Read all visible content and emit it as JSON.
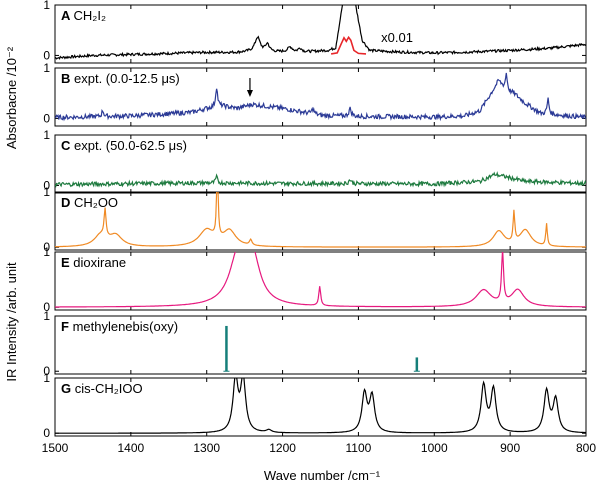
{
  "chart_data": {
    "type": "line",
    "x_axis": {
      "label": "Wave number /cm⁻¹",
      "range": [
        1500,
        800
      ],
      "reversed": true,
      "ticks": [
        1500,
        1400,
        1300,
        1200,
        1100,
        1000,
        900,
        800
      ]
    },
    "y_axis_labels": [
      {
        "text": "Absorbacne /10⁻²",
        "panels": [
          "A",
          "B",
          "C"
        ]
      },
      {
        "text": "IR Intensity /arb. unit",
        "panels": [
          "D",
          "E",
          "F",
          "G"
        ]
      }
    ],
    "grid": false,
    "panels": [
      {
        "id": "A",
        "letter": "A",
        "label": "CH₂I₂",
        "color": "#000000",
        "ylim": [
          -0.15,
          1.0
        ],
        "yticks": [
          0,
          1
        ],
        "kind": "noisy",
        "baseline": [
          [
            1500,
            -0.05
          ],
          [
            1450,
            0.0
          ],
          [
            1400,
            0.02
          ],
          [
            1350,
            0.04
          ],
          [
            1300,
            0.06
          ],
          [
            1260,
            0.06
          ],
          [
            1240,
            0.08
          ],
          [
            1180,
            0.06
          ],
          [
            1140,
            0.1
          ],
          [
            1130,
            0.15
          ],
          [
            1120,
            1.1
          ],
          [
            1105,
            1.1
          ],
          [
            1095,
            0.3
          ],
          [
            1085,
            0.1
          ],
          [
            1050,
            0.07
          ],
          [
            1000,
            0.05
          ],
          [
            950,
            0.07
          ],
          [
            900,
            0.1
          ],
          [
            850,
            0.14
          ],
          [
            800,
            0.22
          ]
        ],
        "peaks": [
          [
            1233,
            0.28,
            4
          ],
          [
            1220,
            0.15,
            3
          ],
          [
            1190,
            0.1,
            4
          ],
          [
            1177,
            0.08,
            3
          ]
        ],
        "noise": 0.025,
        "inset": {
          "label": "x0.01",
          "color": "#e8262a",
          "points": [
            [
              1136,
              0.03
            ],
            [
              1128,
              0.05
            ],
            [
              1123,
              0.22
            ],
            [
              1119,
              0.35
            ],
            [
              1116,
              0.28
            ],
            [
              1113,
              0.36
            ],
            [
              1110,
              0.3
            ],
            [
              1106,
              0.1
            ],
            [
              1100,
              0.04
            ],
            [
              1090,
              0.03
            ]
          ]
        }
      },
      {
        "id": "B",
        "letter": "B",
        "label": "expt. (0.0-12.5 μs)",
        "color": "#2b3a96",
        "ylim": [
          -0.15,
          1.0
        ],
        "yticks": [
          0,
          1
        ],
        "kind": "noisy",
        "baseline": [
          [
            1500,
            0.02
          ],
          [
            1400,
            0.05
          ],
          [
            1320,
            0.12
          ],
          [
            1300,
            0.2
          ],
          [
            1280,
            0.25
          ],
          [
            1260,
            0.2
          ],
          [
            1240,
            0.28
          ],
          [
            1200,
            0.2
          ],
          [
            1150,
            0.06
          ],
          [
            1100,
            0.04
          ],
          [
            1000,
            0.03
          ],
          [
            960,
            0.05
          ],
          [
            940,
            0.15
          ],
          [
            925,
            0.5
          ],
          [
            915,
            0.75
          ],
          [
            905,
            0.55
          ],
          [
            895,
            0.5
          ],
          [
            880,
            0.3
          ],
          [
            860,
            0.1
          ],
          [
            800,
            0.02
          ]
        ],
        "peaks": [
          [
            1287,
            0.4,
            1.5
          ],
          [
            1111,
            0.15,
            2
          ],
          [
            905,
            0.35,
            1.5
          ],
          [
            850,
            0.3,
            1.5
          ],
          [
            1437,
            0.12,
            1.5
          ],
          [
            1160,
            0.1,
            2
          ]
        ],
        "noise": 0.045,
        "arrow_at": 1243
      },
      {
        "id": "C",
        "letter": "C",
        "label": "expt. (50.0-62.5 μs)",
        "color": "#1d7a3e",
        "ylim": [
          -0.15,
          1.0
        ],
        "yticks": [
          0,
          1
        ],
        "kind": "noisy",
        "baseline": [
          [
            1500,
            0.02
          ],
          [
            1300,
            0.05
          ],
          [
            1200,
            0.04
          ],
          [
            1000,
            0.03
          ],
          [
            940,
            0.08
          ],
          [
            920,
            0.22
          ],
          [
            900,
            0.15
          ],
          [
            880,
            0.08
          ],
          [
            800,
            0.04
          ]
        ],
        "peaks": [
          [
            1287,
            0.12,
            1.5
          ],
          [
            1111,
            0.08,
            2
          ]
        ],
        "noise": 0.04
      },
      {
        "id": "D",
        "letter": "D",
        "label": "CH₂OO",
        "color": "#f08a24",
        "ylim": [
          -0.05,
          1.0
        ],
        "yticks": [
          0,
          1
        ],
        "kind": "sim",
        "peaks": [
          [
            1440,
            0.2,
            10
          ],
          [
            1434,
            0.5,
            1.5
          ],
          [
            1420,
            0.2,
            10
          ],
          [
            1300,
            0.3,
            12
          ],
          [
            1286,
            1.3,
            1.2
          ],
          [
            1270,
            0.28,
            10
          ],
          [
            1242,
            0.1,
            2
          ],
          [
            915,
            0.28,
            9
          ],
          [
            895,
            0.55,
            1.3
          ],
          [
            880,
            0.3,
            9
          ],
          [
            852,
            0.4,
            1.2
          ]
        ]
      },
      {
        "id": "E",
        "letter": "E",
        "label": "dioxirane",
        "color": "#e6197f",
        "ylim": [
          -0.05,
          1.0
        ],
        "yticks": [
          0,
          1
        ],
        "kind": "sim",
        "peaks": [
          [
            1258,
            0.9,
            14
          ],
          [
            1240,
            0.8,
            12
          ],
          [
            1250,
            0.3,
            1.5
          ],
          [
            1151,
            0.35,
            1.5
          ],
          [
            935,
            0.3,
            12
          ],
          [
            910,
            0.95,
            1.5
          ],
          [
            890,
            0.3,
            10
          ]
        ]
      },
      {
        "id": "F",
        "letter": "F",
        "label": "methylenebis(oxy)",
        "color": "#167f7a",
        "ylim": [
          -0.05,
          1.0
        ],
        "yticks": [
          0,
          1
        ],
        "kind": "sticks",
        "sticks": [
          [
            1274,
            0.82
          ],
          [
            1023,
            0.25
          ]
        ]
      },
      {
        "id": "G",
        "letter": "G",
        "label": "cis-CH₂IOO",
        "color": "#000000",
        "ylim": [
          -0.05,
          1.0
        ],
        "yticks": [
          0,
          1
        ],
        "kind": "sim",
        "peaks": [
          [
            1262,
            0.95,
            4
          ],
          [
            1252,
            0.95,
            4
          ],
          [
            1218,
            0.05,
            4
          ],
          [
            1092,
            0.7,
            4
          ],
          [
            1082,
            0.65,
            4
          ],
          [
            935,
            0.85,
            4
          ],
          [
            922,
            0.78,
            4
          ],
          [
            852,
            0.75,
            4
          ],
          [
            840,
            0.6,
            4
          ]
        ]
      }
    ]
  }
}
